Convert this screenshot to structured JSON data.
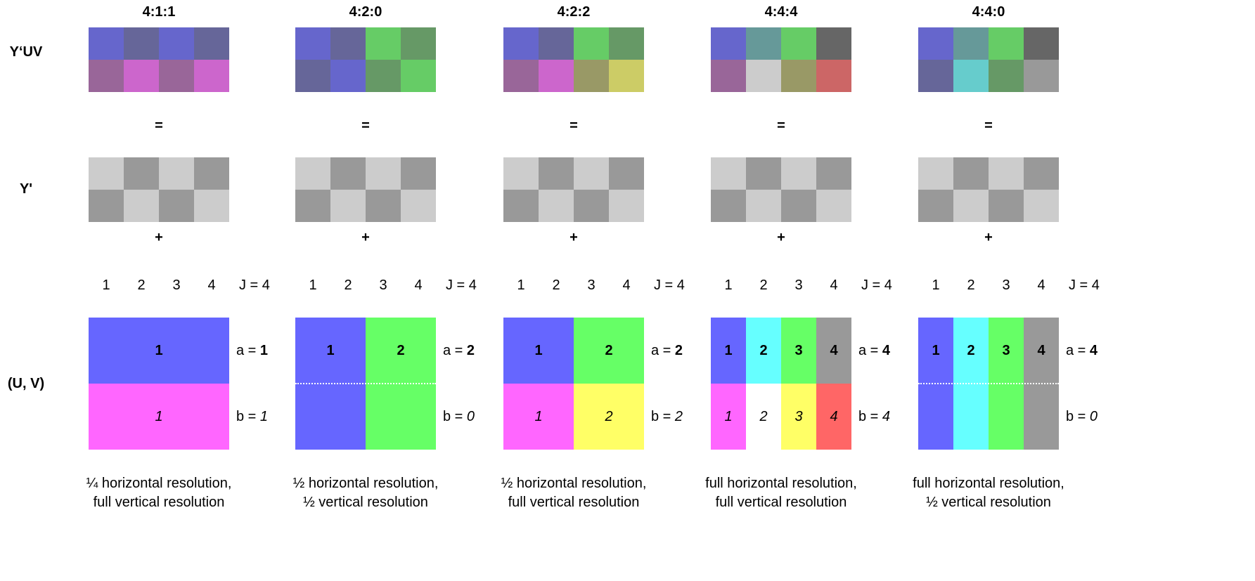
{
  "row_labels": {
    "yuv": "Y‘UV",
    "y": "Y'",
    "uv": "(U, V)"
  },
  "operators": {
    "equals": "=",
    "plus": "+"
  },
  "columns": [
    {
      "title": "4:1:1",
      "yuv_colors": [
        "#6666cc",
        "#666699",
        "#6666cc",
        "#666699",
        "#996699",
        "#cc66cc",
        "#996699",
        "#cc66cc"
      ],
      "numbers": [
        "1",
        "2",
        "3",
        "4"
      ],
      "j_label": "J = 4",
      "uv_top": [
        {
          "label": "1",
          "color": "#6666ff",
          "span": 4
        }
      ],
      "uv_bottom": [
        {
          "label": "1",
          "color": "#ff66ff",
          "span": 4
        }
      ],
      "dotted": false,
      "a_prefix": "a = ",
      "a_value": "1",
      "b_prefix": "b = ",
      "b_value": "1",
      "caption_1": "¼ horizontal resolution,",
      "caption_2": "full vertical resolution"
    },
    {
      "title": "4:2:0",
      "yuv_colors": [
        "#6666cc",
        "#666699",
        "#66cc66",
        "#669966",
        "#666699",
        "#6666cc",
        "#669966",
        "#66cc66"
      ],
      "numbers": [
        "1",
        "2",
        "3",
        "4"
      ],
      "j_label": "J = 4",
      "uv_top": [
        {
          "label": "1",
          "color": "#6666ff",
          "span": 2
        },
        {
          "label": "2",
          "color": "#66ff66",
          "span": 2
        }
      ],
      "uv_bottom": [
        {
          "label": "",
          "color": "#6666ff",
          "span": 2
        },
        {
          "label": "",
          "color": "#66ff66",
          "span": 2
        }
      ],
      "dotted": true,
      "a_prefix": "a = ",
      "a_value": "2",
      "b_prefix": "b = ",
      "b_value": "0",
      "caption_1": "½ horizontal resolution,",
      "caption_2": "½ vertical resolution"
    },
    {
      "title": "4:2:2",
      "yuv_colors": [
        "#6666cc",
        "#666699",
        "#66cc66",
        "#669966",
        "#996699",
        "#cc66cc",
        "#999966",
        "#cccc66"
      ],
      "numbers": [
        "1",
        "2",
        "3",
        "4"
      ],
      "j_label": "J = 4",
      "uv_top": [
        {
          "label": "1",
          "color": "#6666ff",
          "span": 2
        },
        {
          "label": "2",
          "color": "#66ff66",
          "span": 2
        }
      ],
      "uv_bottom": [
        {
          "label": "1",
          "color": "#ff66ff",
          "span": 2
        },
        {
          "label": "2",
          "color": "#ffff66",
          "span": 2
        }
      ],
      "dotted": false,
      "a_prefix": "a = ",
      "a_value": "2",
      "b_prefix": "b = ",
      "b_value": "2",
      "caption_1": "½ horizontal resolution,",
      "caption_2": "full vertical resolution"
    },
    {
      "title": "4:4:4",
      "yuv_colors": [
        "#6666cc",
        "#669999",
        "#66cc66",
        "#666666",
        "#996699",
        "#cccccc",
        "#999966",
        "#cc6666"
      ],
      "numbers": [
        "1",
        "2",
        "3",
        "4"
      ],
      "j_label": "J = 4",
      "uv_top": [
        {
          "label": "1",
          "color": "#6666ff",
          "span": 1
        },
        {
          "label": "2",
          "color": "#66ffff",
          "span": 1
        },
        {
          "label": "3",
          "color": "#66ff66",
          "span": 1
        },
        {
          "label": "4",
          "color": "#999999",
          "span": 1
        }
      ],
      "uv_bottom": [
        {
          "label": "1",
          "color": "#ff66ff",
          "span": 1
        },
        {
          "label": "2",
          "color": "#ffffff",
          "span": 1
        },
        {
          "label": "3",
          "color": "#ffff66",
          "span": 1
        },
        {
          "label": "4",
          "color": "#ff6666",
          "span": 1
        }
      ],
      "dotted": false,
      "a_prefix": "a = ",
      "a_value": "4",
      "b_prefix": "b = ",
      "b_value": "4",
      "caption_1": "full horizontal resolution,",
      "caption_2": "full vertical resolution"
    },
    {
      "title": "4:4:0",
      "yuv_colors": [
        "#6666cc",
        "#669999",
        "#66cc66",
        "#666666",
        "#666699",
        "#66cccc",
        "#669966",
        "#999999"
      ],
      "numbers": [
        "1",
        "2",
        "3",
        "4"
      ],
      "j_label": "J = 4",
      "uv_top": [
        {
          "label": "1",
          "color": "#6666ff",
          "span": 1
        },
        {
          "label": "2",
          "color": "#66ffff",
          "span": 1
        },
        {
          "label": "3",
          "color": "#66ff66",
          "span": 1
        },
        {
          "label": "4",
          "color": "#999999",
          "span": 1
        }
      ],
      "uv_bottom": [
        {
          "label": "",
          "color": "#6666ff",
          "span": 1
        },
        {
          "label": "",
          "color": "#66ffff",
          "span": 1
        },
        {
          "label": "",
          "color": "#66ff66",
          "span": 1
        },
        {
          "label": "",
          "color": "#999999",
          "span": 1
        }
      ],
      "dotted": true,
      "a_prefix": "a = ",
      "a_value": "4",
      "b_prefix": "b = ",
      "b_value": "0",
      "caption_1": "full horizontal resolution,",
      "caption_2": "½ vertical resolution"
    }
  ],
  "y_colors": {
    "light": "#cccccc",
    "dark": "#999999"
  }
}
